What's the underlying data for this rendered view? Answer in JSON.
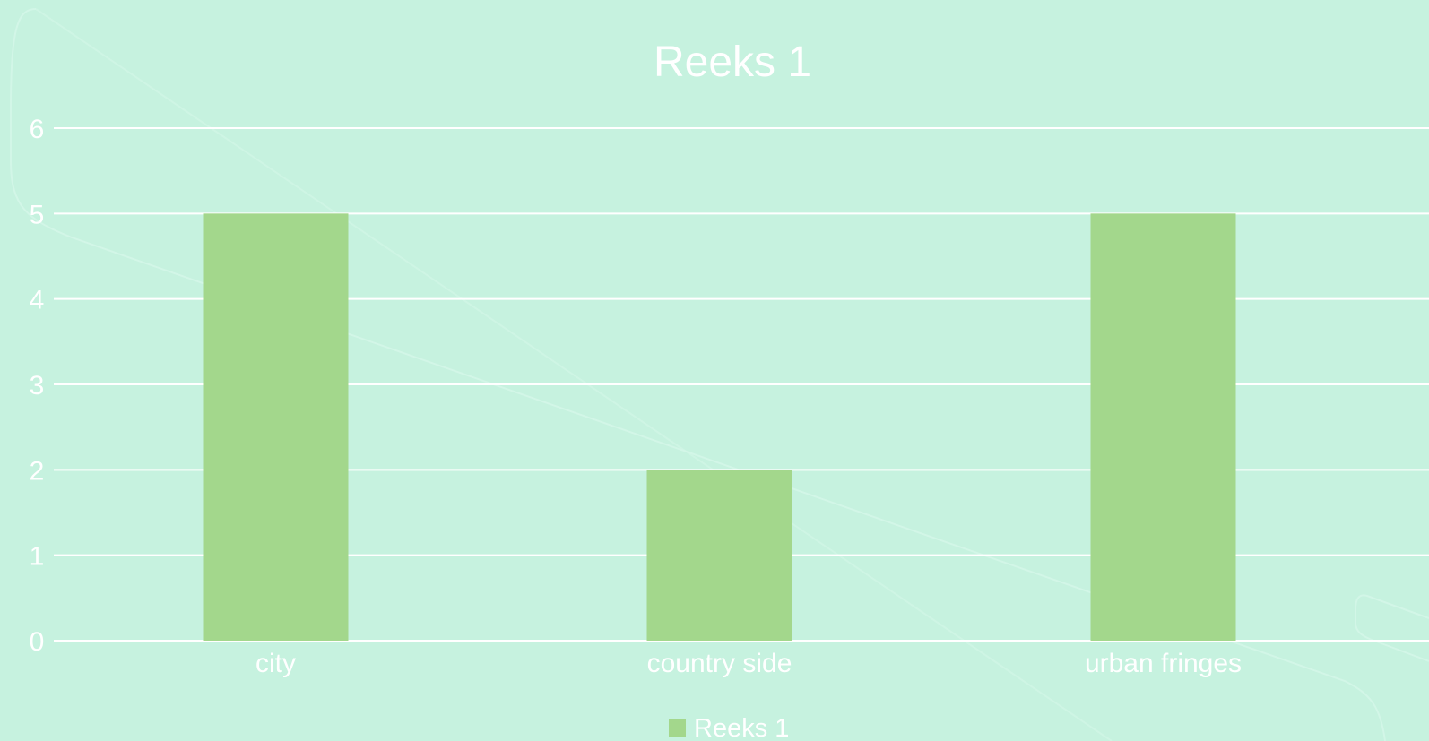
{
  "chart_data": {
    "type": "bar",
    "title": "Reeks 1",
    "categories": [
      "city",
      "country side",
      "urban fringes"
    ],
    "series": [
      {
        "name": "Reeks 1",
        "values": [
          5,
          2,
          5
        ]
      }
    ],
    "xlabel": "",
    "ylabel": "",
    "ylim": [
      0,
      6
    ],
    "yticks": [
      0,
      1,
      2,
      3,
      4,
      5,
      6
    ],
    "grid": true,
    "legend": "bottom",
    "colors": {
      "background": "#c6f2df",
      "bar": "#a3d78c",
      "text": "#ffffff",
      "grid": "#ffffff"
    }
  }
}
